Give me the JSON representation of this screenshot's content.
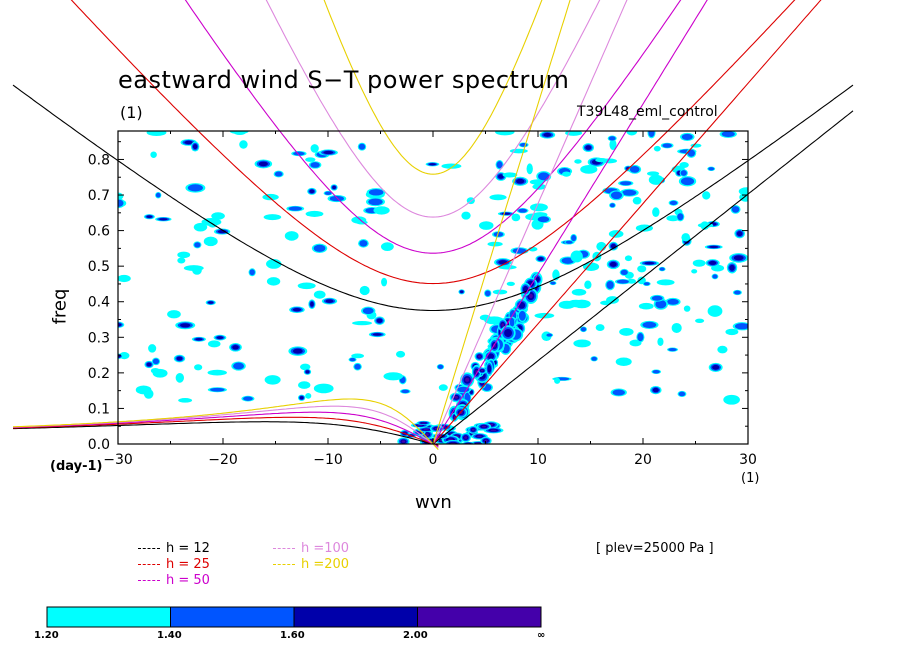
{
  "chart_data": {
    "type": "heatmap",
    "title": "eastward wind S−T power spectrum",
    "subtitle": "(1)",
    "run_label": "T39L48_eml_control",
    "xlabel": "wvn",
    "ylabel": "freq",
    "x_unit": "(1)",
    "y_unit": "(day-1)",
    "xlim": [
      -30,
      30
    ],
    "ylim": [
      0,
      0.88
    ],
    "x_ticks": [
      "−30",
      "−20",
      "−10",
      "0",
      "10",
      "20",
      "30"
    ],
    "y_ticks": [
      "0.0",
      "0.1",
      "0.2",
      "0.3",
      "0.4",
      "0.5",
      "0.6",
      "0.7",
      "0.8"
    ],
    "annotation": "[ plev=25000 Pa ]",
    "dispersion_curves": [
      {
        "label": "h = 12",
        "h": 12,
        "color": "#000000"
      },
      {
        "label": "h = 25",
        "h": 25,
        "color": "#dd0000"
      },
      {
        "label": "h = 50",
        "h": 50,
        "color": "#cc00cc"
      },
      {
        "label": "h =100",
        "h": 100,
        "color": "#dd88dd"
      },
      {
        "label": "h =200",
        "h": 200,
        "color": "#e8d000"
      }
    ],
    "levels": [
      "1.20",
      "1.40",
      "1.60",
      "2.00",
      "∞"
    ],
    "level_colors": [
      "#00ffff",
      "#0055ff",
      "#0000aa",
      "#4400aa"
    ]
  }
}
